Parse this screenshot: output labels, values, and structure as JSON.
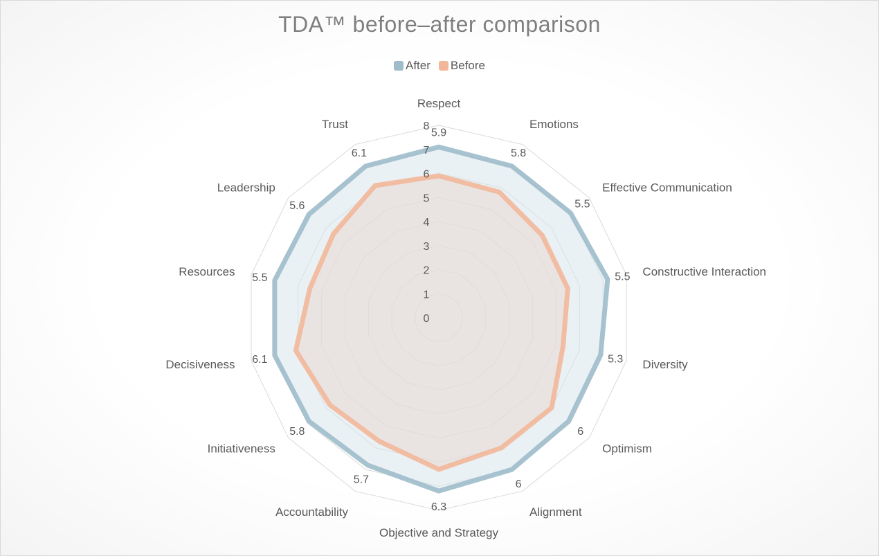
{
  "chart_data": {
    "type": "radar",
    "title": "TDA™ before–after comparison",
    "categories": [
      "Respect",
      "Emotions",
      "Effective Communication",
      "Constructive Interaction",
      "Diversity",
      "Optimism",
      "Alignment",
      "Objective and Strategy",
      "Accountability",
      "Initiativeness",
      "Decisiveness",
      "Resources",
      "Leadership",
      "Trust"
    ],
    "series": [
      {
        "name": "After",
        "values": [
          7.1,
          7.0,
          7.0,
          7.2,
          6.9,
          6.9,
          7.0,
          7.2,
          6.8,
          6.9,
          7.0,
          7.0,
          6.9,
          7.0
        ],
        "labels": [
          "",
          "",
          "",
          "",
          "",
          "",
          "",
          "",
          "",
          "",
          "",
          "",
          "",
          ""
        ],
        "color": "#9fbccb",
        "fill": "#d8e5ec"
      },
      {
        "name": "Before",
        "values": [
          5.9,
          5.8,
          5.5,
          5.5,
          5.3,
          6.0,
          6.0,
          6.3,
          5.7,
          5.8,
          6.1,
          5.5,
          5.6,
          6.1
        ],
        "labels": [
          "5.9",
          "5.8",
          "5.5",
          "5.5",
          "5.3",
          "6",
          "6",
          "6.3",
          "5.7",
          "5.8",
          "6.1",
          "5.5",
          "5.6",
          "6.1"
        ],
        "color": "#f2b79a",
        "fill": "#e7d9d2"
      }
    ],
    "rlim": [
      0,
      8
    ],
    "rticks": [
      "0",
      "1",
      "2",
      "3",
      "4",
      "5",
      "6",
      "7",
      "8"
    ],
    "grid": true,
    "legend_position": "top",
    "colors": {
      "grid": "#d9d9d9",
      "text": "#595959",
      "title": "#7f7f7f"
    }
  }
}
